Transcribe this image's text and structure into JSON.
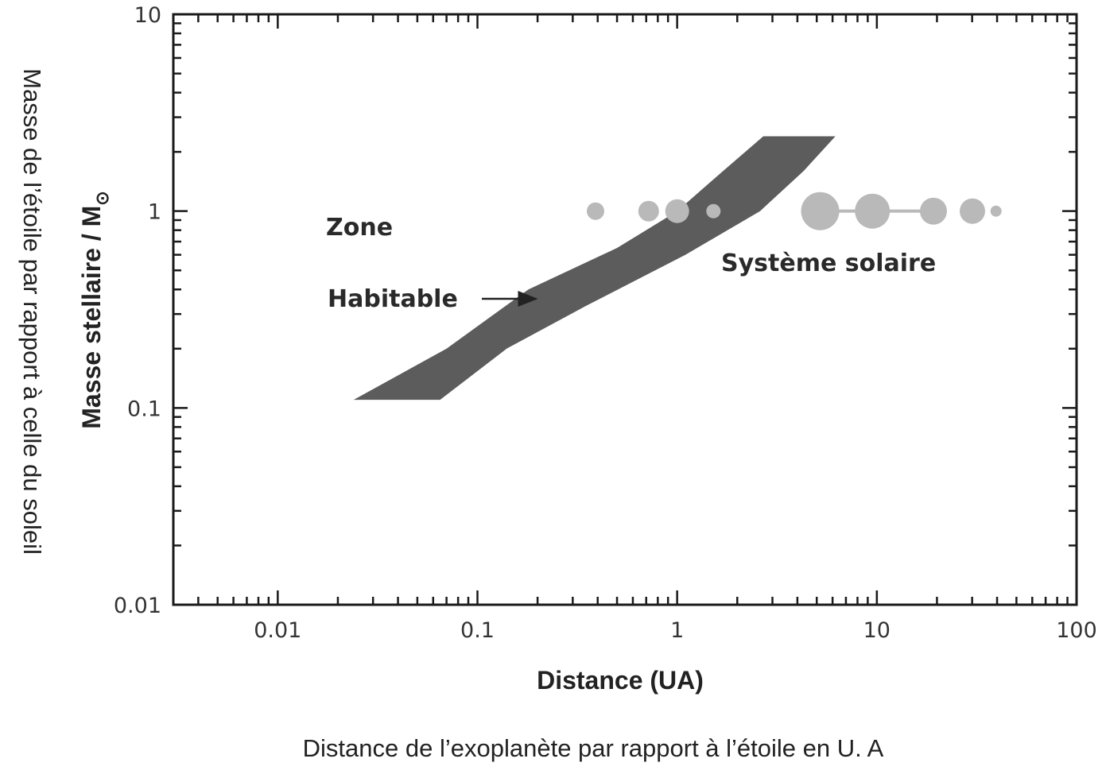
{
  "chart_data": {
    "type": "scatter",
    "x_scale": "log",
    "y_scale": "log",
    "xlim": [
      0.003,
      100
    ],
    "ylim": [
      0.01,
      10
    ],
    "x_ticks": [
      {
        "value": 0.01,
        "label": "0.01"
      },
      {
        "value": 0.1,
        "label": "0.1"
      },
      {
        "value": 1,
        "label": "1"
      },
      {
        "value": 10,
        "label": "10"
      },
      {
        "value": 100,
        "label": "100"
      }
    ],
    "y_ticks": [
      {
        "value": 0.01,
        "label": "0.01"
      },
      {
        "value": 0.1,
        "label": "0.1"
      },
      {
        "value": 1,
        "label": "1"
      },
      {
        "value": 10,
        "label": "10"
      }
    ],
    "xlabel": "Distance (UA)",
    "ylabel": "Masse stellaire / M",
    "ylabel_symbol": "⊙",
    "outer_xlabel": "Distance de l’exoplanète par rapport à l’étoile en U. A",
    "outer_ylabel": "Masse de l’étoile par rapport à celle du soleil",
    "habitable_zone": {
      "label_line1": "Zone",
      "label_line2": "Habitable",
      "color": "#5c5c5c",
      "inner_edge": [
        {
          "x": 0.024,
          "y": 0.11
        },
        {
          "x": 0.07,
          "y": 0.2
        },
        {
          "x": 0.18,
          "y": 0.4
        },
        {
          "x": 0.5,
          "y": 0.65
        },
        {
          "x": 1.0,
          "y": 1.0
        },
        {
          "x": 1.7,
          "y": 1.6
        },
        {
          "x": 2.7,
          "y": 2.4
        }
      ],
      "outer_edge": [
        {
          "x": 0.065,
          "y": 0.11
        },
        {
          "x": 0.14,
          "y": 0.2
        },
        {
          "x": 0.35,
          "y": 0.33
        },
        {
          "x": 1.1,
          "y": 0.6
        },
        {
          "x": 2.6,
          "y": 1.0
        },
        {
          "x": 4.3,
          "y": 1.6
        },
        {
          "x": 6.2,
          "y": 2.4
        }
      ]
    },
    "solar_system": {
      "label": "Système solaire",
      "color": "#b9b9b9",
      "planets": [
        {
          "x": 0.39,
          "y": 1.0,
          "r": 11
        },
        {
          "x": 0.72,
          "y": 1.0,
          "r": 13
        },
        {
          "x": 1.0,
          "y": 1.0,
          "r": 15
        },
        {
          "x": 1.52,
          "y": 1.0,
          "r": 9
        },
        {
          "x": 5.2,
          "y": 1.0,
          "r": 24
        },
        {
          "x": 9.5,
          "y": 1.0,
          "r": 22
        },
        {
          "x": 19.2,
          "y": 1.0,
          "r": 17
        },
        {
          "x": 30.1,
          "y": 1.0,
          "r": 16
        },
        {
          "x": 39.5,
          "y": 1.0,
          "r": 7
        }
      ]
    }
  }
}
